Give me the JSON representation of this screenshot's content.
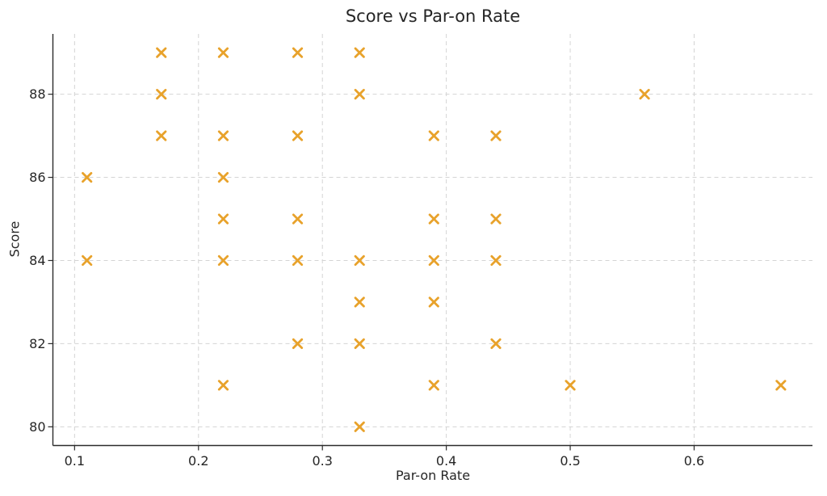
{
  "chart_data": {
    "type": "scatter",
    "title": "Score vs Par-on Rate",
    "xlabel": "Par-on Rate",
    "ylabel": "Score",
    "xlim": [
      0.0825,
      0.6955
    ],
    "ylim": [
      79.55,
      89.45
    ],
    "x_ticks": [
      0.1,
      0.2,
      0.3,
      0.4,
      0.5,
      0.6
    ],
    "x_tick_labels": [
      "0.1",
      "0.2",
      "0.3",
      "0.4",
      "0.5",
      "0.6"
    ],
    "y_ticks": [
      80,
      82,
      84,
      86,
      88
    ],
    "y_tick_labels": [
      "80",
      "82",
      "84",
      "86",
      "88"
    ],
    "grid": true,
    "grid_style": "dashed",
    "legend": false,
    "marker": "x",
    "series": [
      {
        "name": "score-vs-par-on-rate",
        "points": [
          [
            0.17,
            89
          ],
          [
            0.22,
            89
          ],
          [
            0.28,
            89
          ],
          [
            0.33,
            89
          ],
          [
            0.17,
            88
          ],
          [
            0.33,
            88
          ],
          [
            0.56,
            88
          ],
          [
            0.17,
            87
          ],
          [
            0.22,
            87
          ],
          [
            0.28,
            87
          ],
          [
            0.39,
            87
          ],
          [
            0.44,
            87
          ],
          [
            0.11,
            86
          ],
          [
            0.22,
            86
          ],
          [
            0.22,
            85
          ],
          [
            0.28,
            85
          ],
          [
            0.39,
            85
          ],
          [
            0.44,
            85
          ],
          [
            0.11,
            84
          ],
          [
            0.22,
            84
          ],
          [
            0.28,
            84
          ],
          [
            0.33,
            84
          ],
          [
            0.39,
            84
          ],
          [
            0.44,
            84
          ],
          [
            0.33,
            83
          ],
          [
            0.39,
            83
          ],
          [
            0.28,
            82
          ],
          [
            0.33,
            82
          ],
          [
            0.44,
            82
          ],
          [
            0.22,
            81
          ],
          [
            0.39,
            81
          ],
          [
            0.5,
            81
          ],
          [
            0.67,
            81
          ],
          [
            0.33,
            80
          ]
        ]
      }
    ],
    "colors": {
      "marker": "#E8A22B",
      "grid": "#d4d4d4",
      "axis": "#2b2b2b",
      "text": "#262626",
      "background": "#ffffff"
    }
  }
}
